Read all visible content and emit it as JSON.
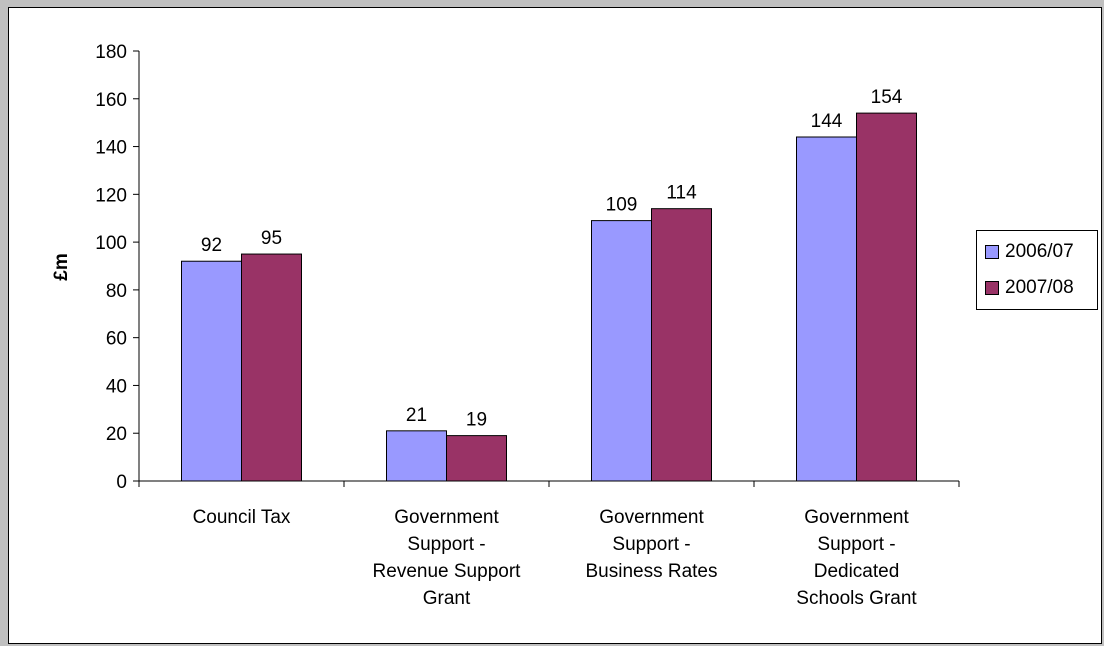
{
  "chart_data": {
    "type": "bar",
    "categories": [
      [
        "Council Tax"
      ],
      [
        "Government",
        "Support -",
        "Revenue Support",
        "Grant"
      ],
      [
        "Government",
        "Support -",
        "Business Rates"
      ],
      [
        "Government",
        "Support -",
        "Dedicated",
        "Schools Grant"
      ]
    ],
    "series": [
      {
        "name": "2006/07",
        "values": [
          92,
          21,
          109,
          144
        ],
        "color": "#9999ff"
      },
      {
        "name": "2007/08",
        "values": [
          95,
          19,
          114,
          154
        ],
        "color": "#993366"
      }
    ],
    "ylabel": "£m",
    "ylim": [
      0,
      180
    ],
    "yticks": [
      0,
      20,
      40,
      60,
      80,
      100,
      120,
      140,
      160,
      180
    ],
    "grid": false,
    "legend": "right"
  }
}
